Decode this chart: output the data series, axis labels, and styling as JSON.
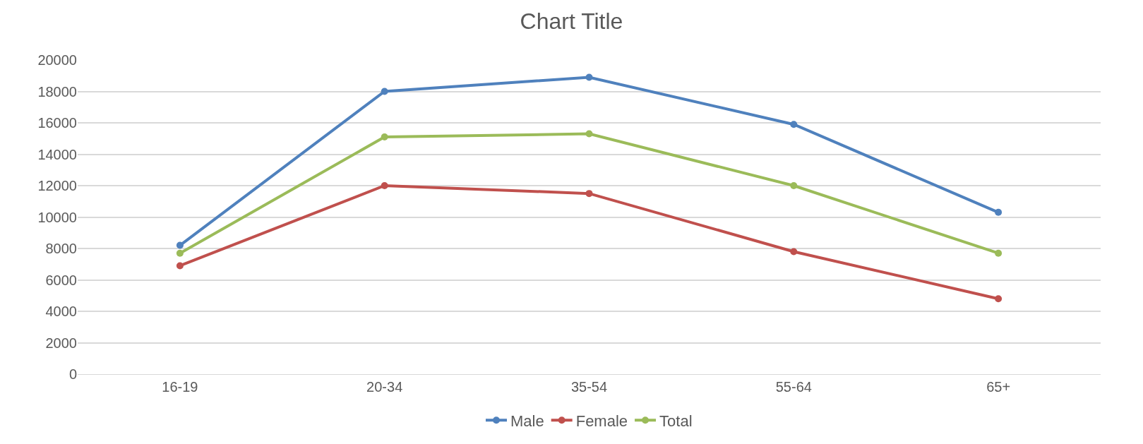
{
  "chart_data": {
    "type": "line",
    "title": "Chart Title",
    "categories": [
      "16-19",
      "20-34",
      "35-54",
      "55-64",
      "65+"
    ],
    "series": [
      {
        "name": "Male",
        "color": "#4f81bd",
        "values": [
          8200,
          18000,
          18900,
          15900,
          10300
        ]
      },
      {
        "name": "Female",
        "color": "#c0504d",
        "values": [
          6900,
          12000,
          11500,
          7800,
          4800
        ]
      },
      {
        "name": "Total",
        "color": "#9bbb59",
        "values": [
          7700,
          15100,
          15300,
          12000,
          7700
        ]
      }
    ],
    "ylim": [
      0,
      20000
    ],
    "yticks": [
      0,
      2000,
      4000,
      6000,
      8000,
      10000,
      12000,
      14000,
      16000,
      18000,
      20000
    ],
    "grid": "y",
    "legend": "bottom",
    "marker": "circle",
    "line_style": "solid"
  }
}
